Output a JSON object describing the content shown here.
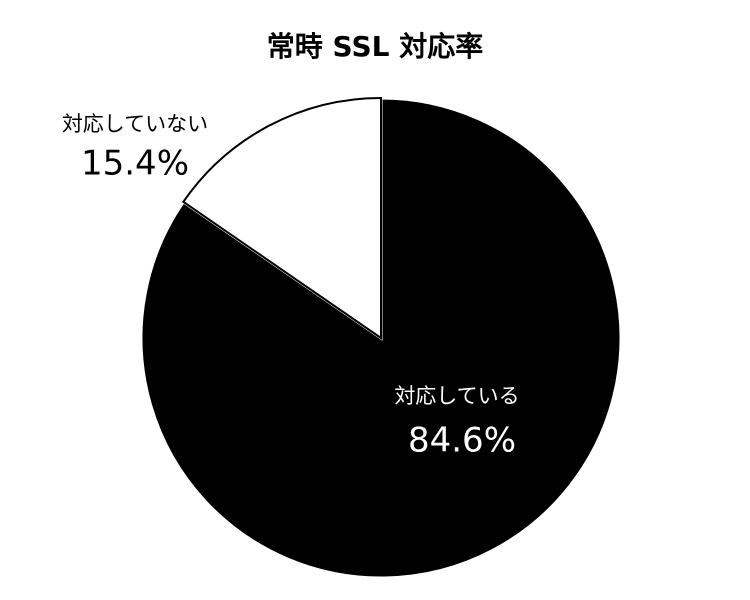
{
  "chart_data": {
    "type": "pie",
    "title": "常時 SSL 対応率",
    "categories": [
      "対応している",
      "対応していない"
    ],
    "values": [
      84.6,
      15.4
    ],
    "value_labels": [
      "84.6%",
      "15.4%"
    ],
    "colors": [
      "#000000",
      "#ffffff"
    ]
  }
}
